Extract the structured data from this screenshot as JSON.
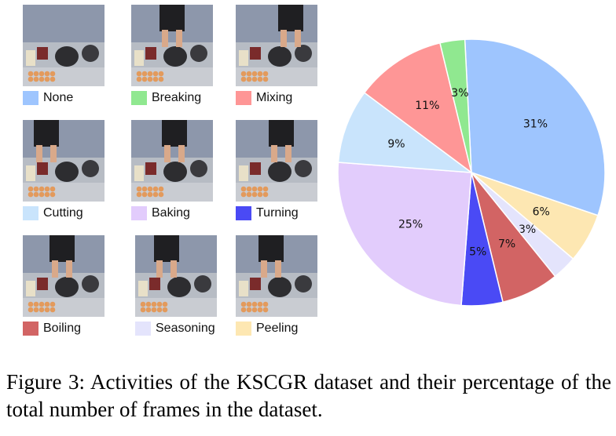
{
  "activities": [
    {
      "name": "None",
      "color": "#9ec5fe"
    },
    {
      "name": "Breaking",
      "color": "#90e890"
    },
    {
      "name": "Mixing",
      "color": "#fe9696"
    },
    {
      "name": "Cutting",
      "color": "#c9e4fc"
    },
    {
      "name": "Baking",
      "color": "#e2ccfc"
    },
    {
      "name": "Turning",
      "color": "#4a4af5"
    },
    {
      "name": "Boiling",
      "color": "#d26464"
    },
    {
      "name": "Seasoning",
      "color": "#e4e4fc"
    },
    {
      "name": "Peeling",
      "color": "#fde7b2"
    }
  ],
  "chart_data": {
    "type": "pie",
    "slices": [
      {
        "label": "None",
        "value": 31,
        "text": "31%",
        "color": "#9ec5fe"
      },
      {
        "label": "Peeling",
        "value": 6,
        "text": "6%",
        "color": "#fde7b2"
      },
      {
        "label": "Seasoning",
        "value": 3,
        "text": "3%",
        "color": "#e4e4fc"
      },
      {
        "label": "Boiling",
        "value": 7,
        "text": "7%",
        "color": "#d26464"
      },
      {
        "label": "Turning",
        "value": 5,
        "text": "5%",
        "color": "#4a4af5"
      },
      {
        "label": "Baking",
        "value": 25,
        "text": "25%",
        "color": "#e2ccfc"
      },
      {
        "label": "Cutting",
        "value": 9,
        "text": "9%",
        "color": "#c9e4fc"
      },
      {
        "label": "Mixing",
        "value": 11,
        "text": "11%",
        "color": "#fe9696"
      },
      {
        "label": "Breaking",
        "value": 3,
        "text": "3%",
        "color": "#90e890"
      }
    ],
    "direction": "clockwise",
    "legend": "image grid, left"
  },
  "caption": "Figure 3: Activities of the KSCGR dataset and their percentage of the total number of frames in the dataset."
}
